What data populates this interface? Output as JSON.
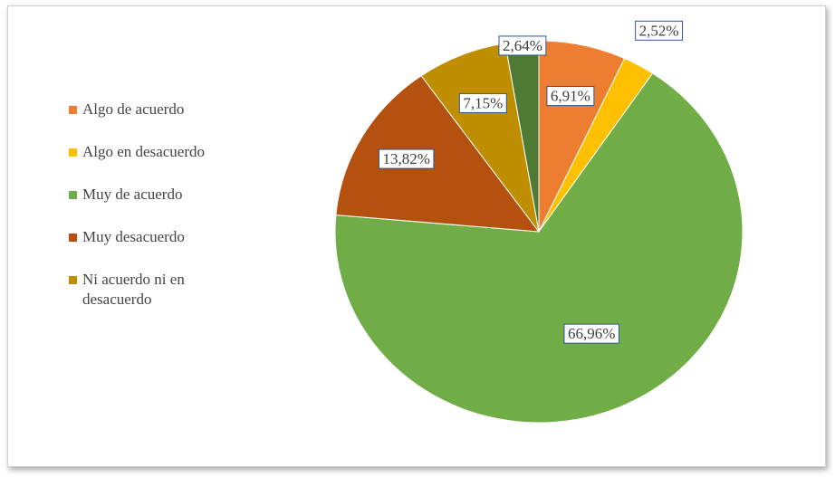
{
  "chart_data": {
    "type": "pie",
    "categories": [
      "Algo de acuerdo",
      "Algo en desacuerdo",
      "Muy de acuerdo",
      "Muy desacuerdo",
      "Ni acuerdo ni en desacuerdo",
      null
    ],
    "values": [
      6.91,
      2.52,
      66.96,
      13.82,
      7.15,
      2.64
    ],
    "value_labels": [
      "6,91%",
      "2,52%",
      "66,96%",
      "13,82%",
      "7,15%",
      "2,64%"
    ],
    "colors": [
      "#ed7d31",
      "#ffc000",
      "#70ad47",
      "#b5510f",
      "#bf8f00",
      "#4f7a33"
    ],
    "legend": "left"
  }
}
